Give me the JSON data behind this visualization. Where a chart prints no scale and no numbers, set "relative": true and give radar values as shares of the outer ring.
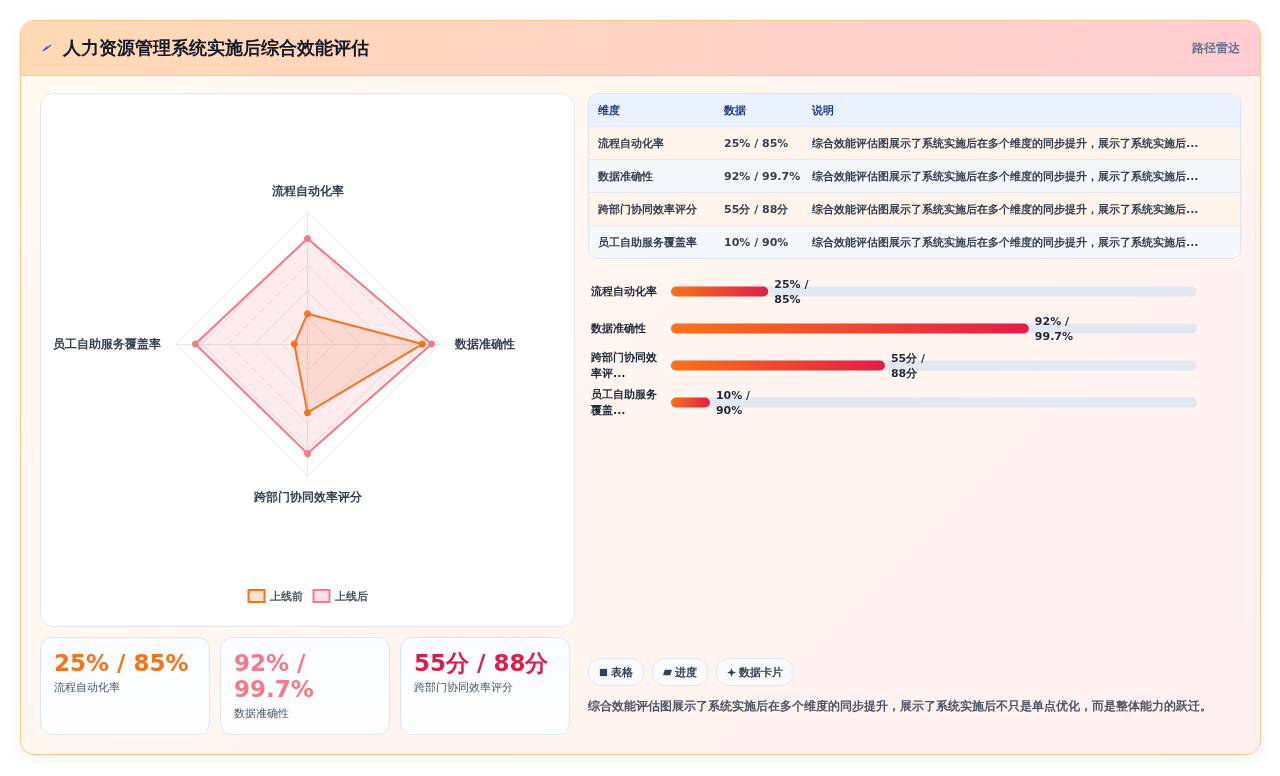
{
  "chart_data": [
    {
      "type": "radar",
      "categories": [
        "流程自动化率",
        "数据准确性",
        "跨部门协同效率评分",
        "员工自助服务覆盖率"
      ],
      "relative": true,
      "grid": true,
      "legend": "bottom",
      "marker": "circle",
      "line_style": "solid",
      "series": [
        {
          "name": "上线前",
          "color": "#f97316",
          "values": [
            0.23,
            0.87,
            0.52,
            0.1
          ]
        },
        {
          "name": "上线后",
          "color": "#f47a8a",
          "values": [
            0.8,
            0.94,
            0.83,
            0.85
          ]
        }
      ]
    },
    {
      "type": "bar",
      "orientation": "horizontal",
      "tick_labels": "y",
      "categories": [
        "流程自动化率",
        "数据准确性",
        "跨部门协同效率评...",
        "员工自助服务覆盖..."
      ],
      "values": [
        25,
        92,
        55,
        10
      ],
      "color": "#e11d48",
      "value_labels": [
        "25% / 85%",
        "92% / 99.7%",
        "55分 / 88分",
        "10% / 90%"
      ]
    },
    {
      "type": "other",
      "annotations": [
        "维度",
        "数据",
        "说明",
        "流程自动化率",
        "25% / 85%",
        "综合效能评估图展示了系统实施后在多个维度的同步提升，展示了系统实施后...",
        "数据准确性",
        "92% / 99.7%",
        "综合效能评估图展示了系统实施后在多个维度的同步提升，展示了系统实施后...",
        "跨部门协同效率评分",
        "55分 / 88分",
        "综合效能评估图展示了系统实施后在多个维度的同步提升，展示了系统实施后...",
        "员工自助服务覆盖率",
        "10% / 90%",
        "综合效能评估图展示了系统实施后在多个维度的同步提升，展示了系统实施后..."
      ]
    },
    {
      "type": "other",
      "annotations": [
        "25% / 85%",
        "流程自动化率",
        "92% / 99.7%",
        "数据准确性",
        "55分 / 88分",
        "跨部门协同效率评分"
      ],
      "colors": [
        "#f97316",
        "#f47a8a",
        "#dc1f4a"
      ]
    },
    {
      "type": "other",
      "annotations": [
        "表格",
        "进度",
        "数据卡片",
        "综合效能评估图展示了系统实施后在多个维度的同步提升，展示了系统实施后不只是单点优化，而是整体能力的跃迁。"
      ]
    },
    {
      "type": "other",
      "title": "人力资源管理系统实施后综合效能评估",
      "subtitle": "路径雷达"
    }
  ]
}
